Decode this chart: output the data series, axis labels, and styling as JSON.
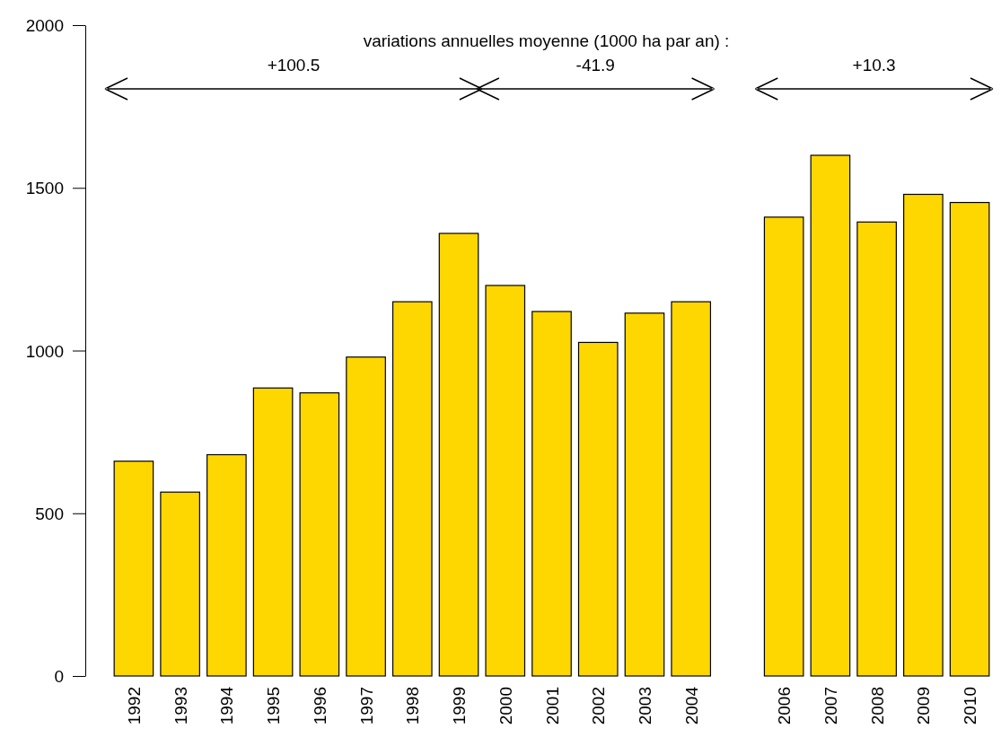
{
  "chart_data": {
    "type": "bar",
    "title": "variations annuelles moyenne (1000 ha par an) :",
    "categories": [
      "1992",
      "1993",
      "1994",
      "1995",
      "1996",
      "1997",
      "1998",
      "1999",
      "2000",
      "2001",
      "2002",
      "2003",
      "2004",
      null,
      "2006",
      "2007",
      "2008",
      "2009",
      "2010"
    ],
    "values": [
      660,
      565,
      680,
      885,
      870,
      980,
      1150,
      1360,
      1200,
      1120,
      1025,
      1115,
      1150,
      null,
      1410,
      1600,
      1395,
      1480,
      1455
    ],
    "color": "#ffd700",
    "ylim": [
      0,
      2000
    ],
    "yticks": [
      0,
      500,
      1000,
      1500,
      2000
    ],
    "grid": false,
    "annotations": [
      "+100.5",
      "-41.9",
      "+10.3"
    ]
  }
}
